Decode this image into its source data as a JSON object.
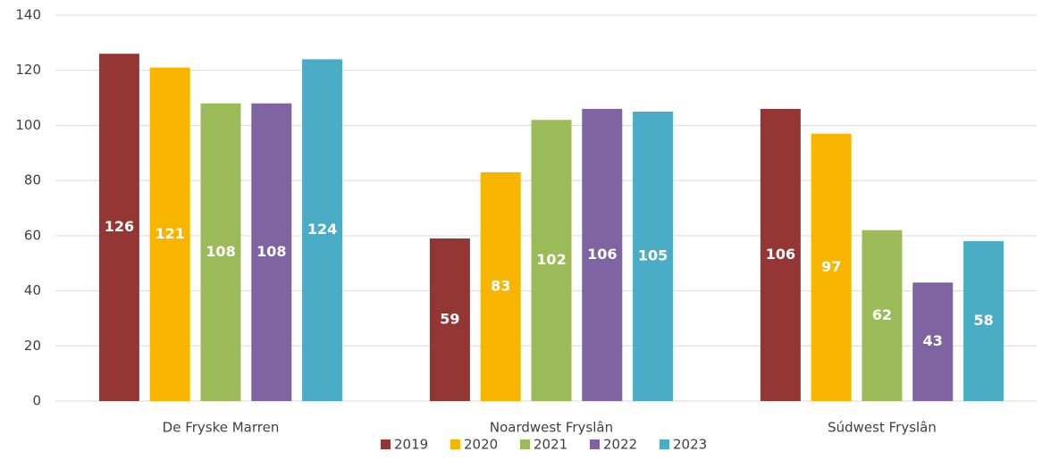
{
  "chart_data": {
    "type": "bar",
    "categories": [
      "De Fryske Marren",
      "Noardwest Fryslân",
      "Súdwest Fryslân"
    ],
    "series": [
      {
        "name": "2019",
        "color": "#943634",
        "values": [
          126,
          59,
          106
        ]
      },
      {
        "name": "2020",
        "color": "#f8b500",
        "values": [
          121,
          83,
          97
        ]
      },
      {
        "name": "2021",
        "color": "#9bbb59",
        "values": [
          108,
          102,
          62
        ]
      },
      {
        "name": "2022",
        "color": "#8064a2",
        "values": [
          108,
          106,
          43
        ]
      },
      {
        "name": "2023",
        "color": "#4bacc6",
        "values": [
          124,
          105,
          58
        ]
      }
    ],
    "ylim": [
      0,
      140
    ],
    "yticks": [
      0,
      20,
      40,
      60,
      80,
      100,
      120,
      140
    ],
    "grid": true,
    "legend": "bottom"
  }
}
